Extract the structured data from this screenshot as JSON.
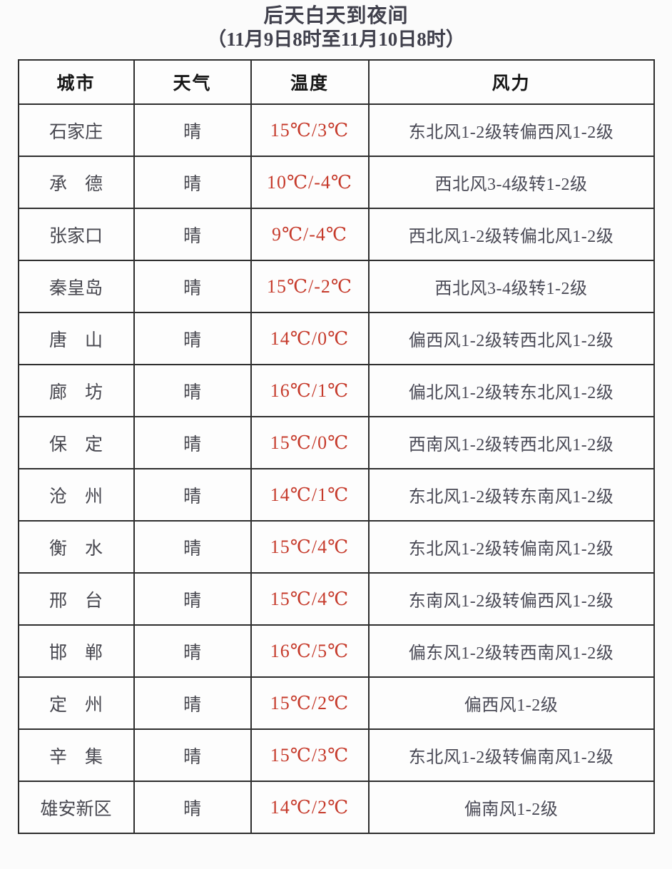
{
  "title": {
    "line1": "后天白天到夜间",
    "line2": "（11月9日8时至11月10日8时）"
  },
  "colors": {
    "temperature_red": "#c63b2c",
    "body_text": "#4a4a56",
    "header_text": "#161616",
    "border": "#2e2e2e"
  },
  "table": {
    "headers": {
      "city": "城市",
      "weather": "天气",
      "temperature": "温度",
      "wind": "风力"
    },
    "rows": [
      {
        "city": "石家庄",
        "weather": "晴",
        "temperature": "15℃/3℃",
        "wind": "东北风1-2级转偏西风1-2级"
      },
      {
        "city": "承　德",
        "weather": "晴",
        "temperature": "10℃/-4℃",
        "wind": "西北风3-4级转1-2级"
      },
      {
        "city": "张家口",
        "weather": "晴",
        "temperature": "9℃/-4℃",
        "wind": "西北风1-2级转偏北风1-2级"
      },
      {
        "city": "秦皇岛",
        "weather": "晴",
        "temperature": "15℃/-2℃",
        "wind": "西北风3-4级转1-2级"
      },
      {
        "city": "唐　山",
        "weather": "晴",
        "temperature": "14℃/0℃",
        "wind": "偏西风1-2级转西北风1-2级"
      },
      {
        "city": "廊　坊",
        "weather": "晴",
        "temperature": "16℃/1℃",
        "wind": "偏北风1-2级转东北风1-2级"
      },
      {
        "city": "保　定",
        "weather": "晴",
        "temperature": "15℃/0℃",
        "wind": "西南风1-2级转西北风1-2级"
      },
      {
        "city": "沧　州",
        "weather": "晴",
        "temperature": "14℃/1℃",
        "wind": "东北风1-2级转东南风1-2级"
      },
      {
        "city": "衡　水",
        "weather": "晴",
        "temperature": "15℃/4℃",
        "wind": "东北风1-2级转偏南风1-2级"
      },
      {
        "city": "邢　台",
        "weather": "晴",
        "temperature": "15℃/4℃",
        "wind": "东南风1-2级转偏西风1-2级"
      },
      {
        "city": "邯　郸",
        "weather": "晴",
        "temperature": "16℃/5℃",
        "wind": "偏东风1-2级转西南风1-2级"
      },
      {
        "city": "定　州",
        "weather": "晴",
        "temperature": "15℃/2℃",
        "wind": "偏西风1-2级"
      },
      {
        "city": "辛　集",
        "weather": "晴",
        "temperature": "15℃/3℃",
        "wind": "东北风1-2级转偏南风1-2级"
      },
      {
        "city": "雄安新区",
        "weather": "晴",
        "temperature": "14℃/2℃",
        "wind": "偏南风1-2级"
      }
    ]
  }
}
